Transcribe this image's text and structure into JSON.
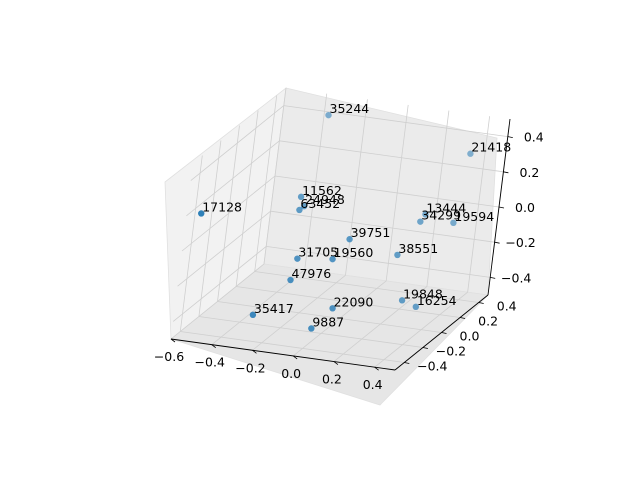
{
  "chart_data": {
    "type": "scatter",
    "projection": "3d",
    "title": "",
    "xlabel": "",
    "ylabel": "",
    "zlabel": "",
    "xlim": [
      -0.6,
      0.5
    ],
    "ylim": [
      -0.5,
      0.5
    ],
    "zlim": [
      -0.5,
      0.5
    ],
    "x_ticks": [
      "−0.6",
      "−0.4",
      "−0.2",
      "0.0",
      "0.2",
      "0.4"
    ],
    "y_ticks": [
      "−0.4",
      "−0.2",
      "0.0",
      "0.2",
      "0.4"
    ],
    "z_ticks": [
      "−0.4",
      "−0.2",
      "0.0",
      "0.2",
      "0.4"
    ],
    "grid": true,
    "marker_color": "#1f77b4",
    "points": [
      {
        "label": "35244",
        "x": -0.33,
        "y": 0.38,
        "z": 0.44
      },
      {
        "label": "21418",
        "x": 0.35,
        "y": 0.45,
        "z": 0.3
      },
      {
        "label": "11562",
        "x": -0.3,
        "y": 0.1,
        "z": 0.1
      },
      {
        "label": "24948",
        "x": -0.28,
        "y": 0.1,
        "z": 0.05
      },
      {
        "label": "63452",
        "x": -0.28,
        "y": 0.05,
        "z": 0.05
      },
      {
        "label": "13444",
        "x": 0.23,
        "y": 0.3,
        "z": 0.0
      },
      {
        "label": "34299",
        "x": 0.23,
        "y": 0.25,
        "z": -0.02
      },
      {
        "label": "19594",
        "x": 0.35,
        "y": 0.35,
        "z": -0.05
      },
      {
        "label": "17128",
        "x": -0.55,
        "y": -0.45,
        "z": 0.2
      },
      {
        "label": "39751",
        "x": 0.0,
        "y": 0.0,
        "z": -0.05
      },
      {
        "label": "31705",
        "x": -0.2,
        "y": -0.1,
        "z": -0.15
      },
      {
        "label": "19560",
        "x": -0.05,
        "y": -0.05,
        "z": -0.15
      },
      {
        "label": "38551",
        "x": 0.2,
        "y": 0.1,
        "z": -0.15
      },
      {
        "label": "47976",
        "x": -0.2,
        "y": -0.15,
        "z": -0.25
      },
      {
        "label": "19848",
        "x": 0.25,
        "y": 0.1,
        "z": -0.4
      },
      {
        "label": "16254",
        "x": 0.3,
        "y": 0.15,
        "z": -0.45
      },
      {
        "label": "22090",
        "x": 0.0,
        "y": -0.1,
        "z": -0.4
      },
      {
        "label": "35417",
        "x": -0.3,
        "y": -0.3,
        "z": -0.4
      },
      {
        "label": "9887",
        "x": -0.05,
        "y": -0.2,
        "z": -0.48
      }
    ]
  }
}
